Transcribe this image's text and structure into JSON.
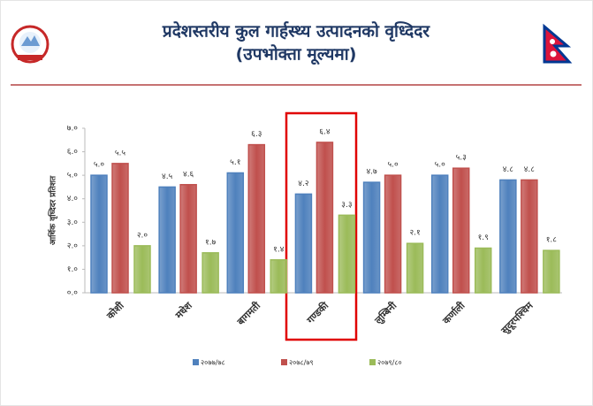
{
  "chart_data": {
    "type": "bar",
    "title": "प्रदेशस्तरीय कुल गार्हस्थ्य उत्पादनको वृध्दिदर",
    "subtitle": "(उपभोक्ता मूल्यमा)",
    "y_label": "आर्थिक वृध्दिदर प्रतिशत",
    "categories": [
      "कोशी",
      "मधेश",
      "बागमती",
      "गण्डकी",
      "लुम्बिनी",
      "कर्णाली",
      "सुदूरपश्चिम"
    ],
    "series": [
      {
        "name": "२०७७/७८",
        "color": "#4f81bd",
        "values": [
          5.0,
          4.5,
          5.1,
          4.2,
          4.7,
          5.0,
          4.8
        ],
        "value_labels": [
          "५.०",
          "४.५",
          "५.१",
          "४.२",
          "४.७",
          "५.०",
          "४.८"
        ]
      },
      {
        "name": "२०७८/७९",
        "color": "#c0504d",
        "values": [
          5.5,
          4.6,
          6.3,
          6.4,
          5.0,
          5.3,
          4.8
        ],
        "value_labels": [
          "५.५",
          "४.६",
          "६.३",
          "६.४",
          "५.०",
          "५.३",
          "४.८"
        ]
      },
      {
        "name": "२०७९/८०",
        "color": "#9bbb59",
        "values": [
          2.0,
          1.7,
          1.4,
          3.3,
          2.1,
          1.9,
          1.8
        ],
        "value_labels": [
          "२.०",
          "१.७",
          "१.४",
          "३.३",
          "२.१",
          "१.९",
          "१.८"
        ]
      }
    ],
    "ylim": [
      0,
      7
    ],
    "yticks": [
      {
        "value": 0,
        "label": "०.०"
      },
      {
        "value": 1,
        "label": "१.०"
      },
      {
        "value": 2,
        "label": "२.०"
      },
      {
        "value": 3,
        "label": "३.०"
      },
      {
        "value": 4,
        "label": "४.०"
      },
      {
        "value": 5,
        "label": "५.०"
      },
      {
        "value": 6,
        "label": "६.०"
      },
      {
        "value": 7,
        "label": "७.०"
      }
    ],
    "legend": "bottom"
  }
}
